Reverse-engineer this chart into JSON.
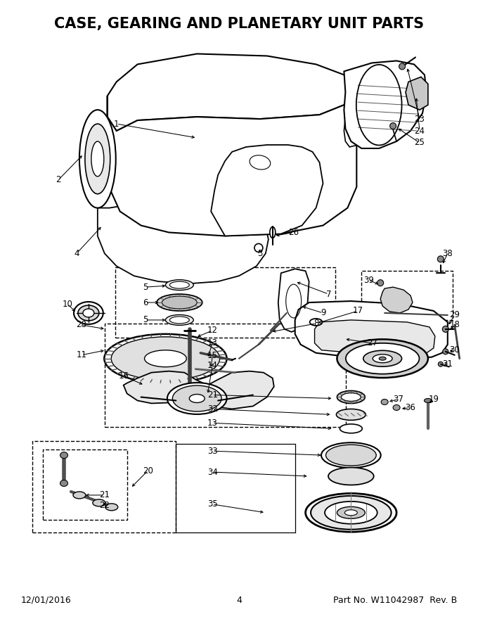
{
  "title": "CASE, GEARING AND PLANETARY UNIT PARTS",
  "title_fontsize": 15,
  "title_fontweight": "bold",
  "footer_left": "12/01/2016",
  "footer_center": "4",
  "footer_right": "Part No. W11042987  Rev. B",
  "footer_fontsize": 9,
  "bg_color": "#ffffff",
  "line_color": "#000000",
  "fig_width": 6.8,
  "fig_height": 8.8,
  "dpi": 100
}
